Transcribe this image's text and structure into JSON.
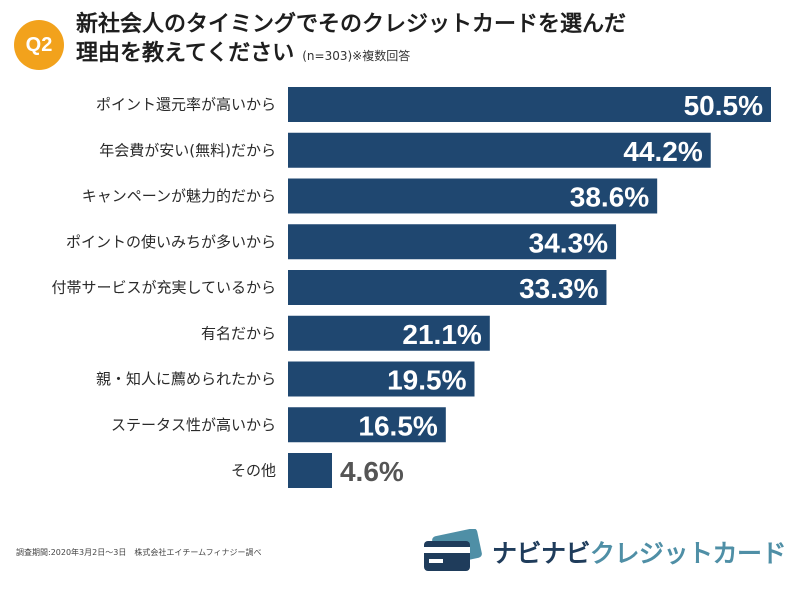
{
  "header": {
    "badge": "Q2",
    "title_line1": "新社会人のタイミングでそのクレジットカードを選んだ",
    "title_line2": "理由を教えてください",
    "note": "(n=303)※複数回答"
  },
  "chart_data": {
    "type": "bar",
    "orientation": "horizontal",
    "categories": [
      "ポイント還元率が高いから",
      "年会費が安い(無料)だから",
      "キャンペーンが魅力的だから",
      "ポイントの使いみちが多いから",
      "付帯サービスが充実しているから",
      "有名だから",
      "親・知人に薦められたから",
      "ステータス性が高いから",
      "その他"
    ],
    "values": [
      50.5,
      44.2,
      38.6,
      34.3,
      33.3,
      21.1,
      19.5,
      16.5,
      4.6
    ],
    "value_labels": [
      "50.5%",
      "44.2%",
      "38.6%",
      "34.3%",
      "33.3%",
      "21.1%",
      "19.5%",
      "16.5%",
      "4.6%"
    ],
    "xlim": [
      0,
      50.5
    ],
    "grid": false,
    "bar_color": "#1f4770",
    "label_color_inside": "#ffffff",
    "label_color_outside": "#555555"
  },
  "footer": {
    "survey_note": "調査期間:2020年3月2日〜3日　株式会社エイチームフィナジー調べ",
    "brand_part1": "ナビナビ",
    "brand_part2": "クレジットカード",
    "brand_color_1": "#1f3c5b",
    "brand_color_2": "#4f8fa6",
    "icon": "credit-card-icon"
  }
}
